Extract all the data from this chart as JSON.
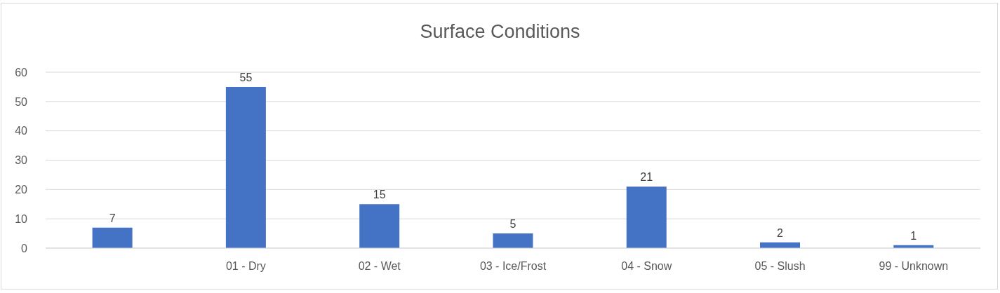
{
  "chart_data": {
    "type": "bar",
    "title": "Surface Conditions",
    "categories": [
      null,
      "01 - Dry",
      "02 - Wet",
      "03 - Ice/Frost",
      "04 - Snow",
      "05 - Slush",
      "99 - Unknown"
    ],
    "values": [
      7,
      55,
      15,
      5,
      21,
      2,
      1
    ],
    "color": "#4472c4",
    "ylim": [
      0,
      60
    ],
    "yticks": [
      0,
      10,
      20,
      30,
      40,
      50,
      60
    ],
    "grid": "y",
    "data_labels": true
  }
}
